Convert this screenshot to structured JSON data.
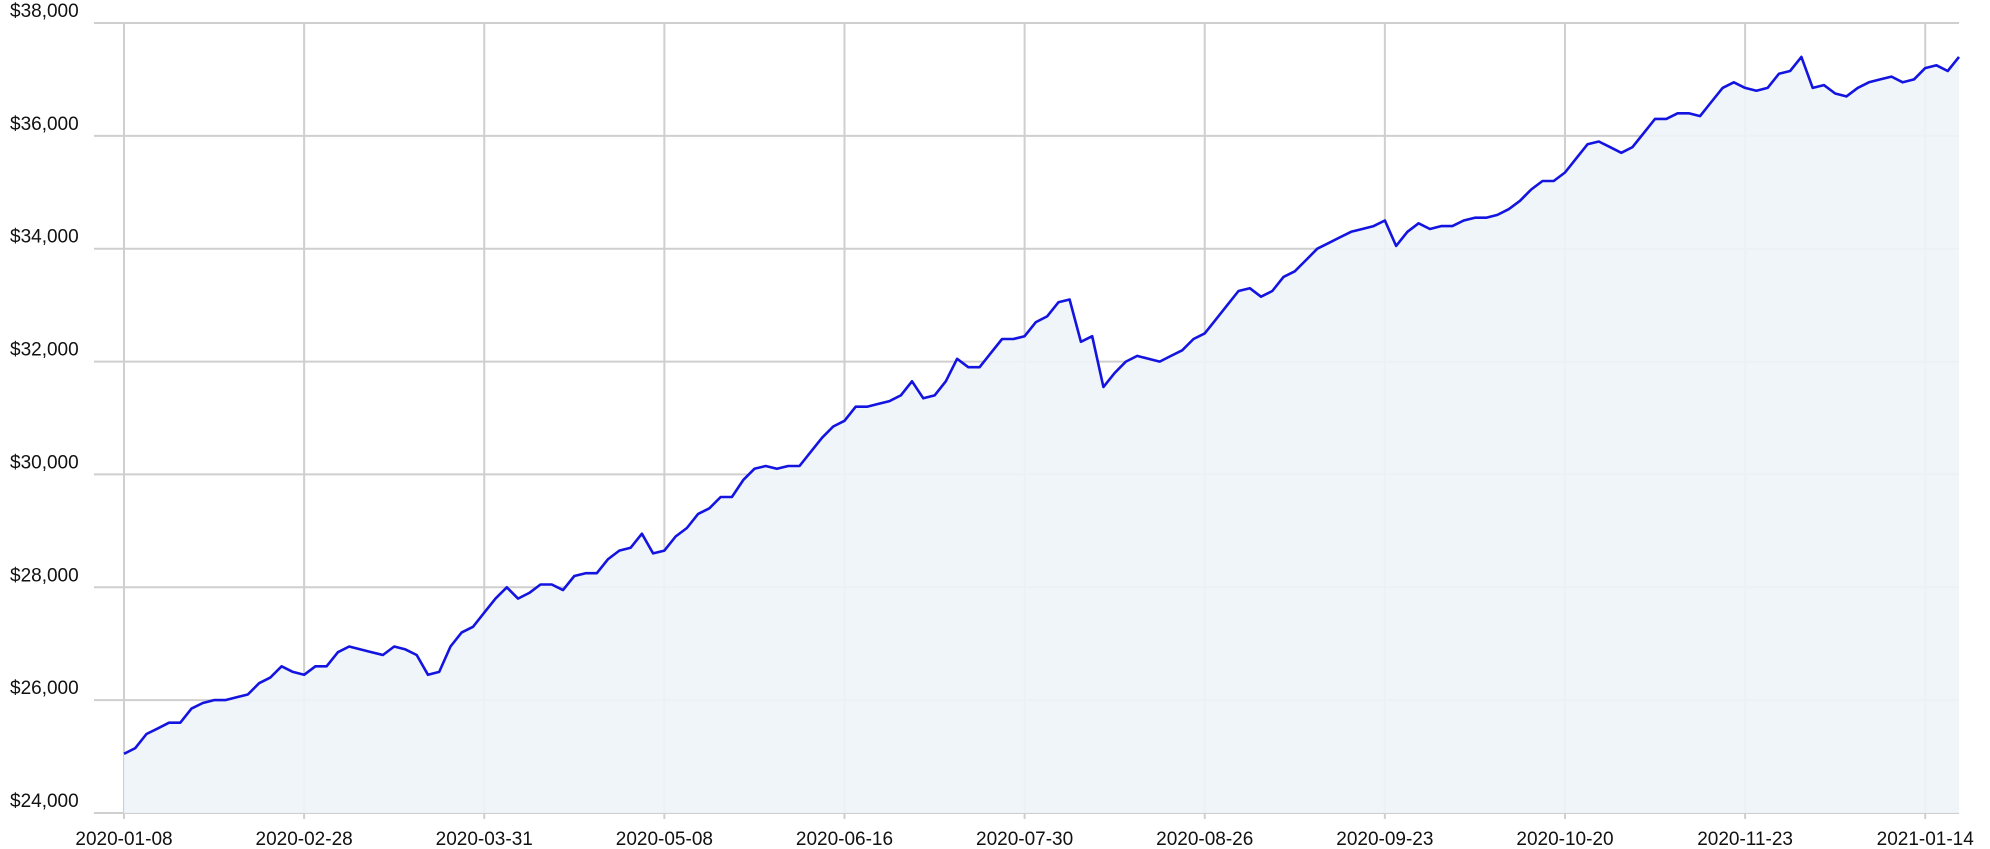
{
  "chart_data": {
    "type": "area",
    "categories": [
      "2020-01-08",
      null,
      null,
      null,
      null,
      null,
      null,
      null,
      null,
      null,
      null,
      null,
      null,
      null,
      null,
      null,
      "2020-02-28",
      null,
      null,
      null,
      null,
      null,
      null,
      null,
      null,
      null,
      null,
      null,
      null,
      null,
      null,
      null,
      "2020-03-31",
      null,
      null,
      null,
      null,
      null,
      null,
      null,
      null,
      null,
      null,
      null,
      null,
      null,
      null,
      null,
      "2020-05-08",
      null,
      null,
      null,
      null,
      null,
      null,
      null,
      null,
      null,
      null,
      null,
      null,
      null,
      null,
      null,
      "2020-06-16",
      null,
      null,
      null,
      null,
      null,
      null,
      null,
      null,
      null,
      null,
      null,
      null,
      null,
      null,
      null,
      "2020-07-30",
      null,
      null,
      null,
      null,
      null,
      null,
      null,
      null,
      null,
      null,
      null,
      null,
      null,
      null,
      null,
      "2020-08-26",
      null,
      null,
      null,
      null,
      null,
      null,
      null,
      null,
      null,
      null,
      null,
      null,
      null,
      null,
      null,
      "2020-09-23",
      null,
      null,
      null,
      null,
      null,
      null,
      null,
      null,
      null,
      null,
      null,
      null,
      null,
      null,
      null,
      "2020-10-20",
      null,
      null,
      null,
      null,
      null,
      null,
      null,
      null,
      null,
      null,
      null,
      null,
      null,
      null,
      null,
      "2020-11-23",
      null,
      null,
      null,
      null,
      null,
      null,
      null,
      null,
      null,
      null,
      null,
      null,
      null,
      null,
      null,
      "2021-01-14",
      null,
      null,
      null
    ],
    "values": [
      25050,
      25150,
      25400,
      25500,
      25600,
      25600,
      25850,
      25950,
      26000,
      26000,
      26050,
      26100,
      26300,
      26400,
      26600,
      26500,
      26450,
      26600,
      26600,
      26850,
      26950,
      26900,
      26850,
      26800,
      26950,
      26900,
      26800,
      26450,
      26500,
      26950,
      27200,
      27300,
      27550,
      27800,
      28000,
      27800,
      27900,
      28050,
      28050,
      27950,
      28200,
      28250,
      28250,
      28500,
      28650,
      28700,
      28950,
      28600,
      28650,
      28900,
      29050,
      29300,
      29400,
      29600,
      29600,
      29900,
      30100,
      30150,
      30100,
      30150,
      30150,
      30400,
      30650,
      30850,
      30950,
      31200,
      31200,
      31250,
      31300,
      31400,
      31650,
      31350,
      31400,
      31650,
      32050,
      31900,
      31900,
      32150,
      32400,
      32400,
      32450,
      32700,
      32800,
      33050,
      33100,
      32350,
      32450,
      31550,
      31800,
      32000,
      32100,
      32050,
      32000,
      32100,
      32200,
      32400,
      32500,
      32750,
      33000,
      33250,
      33300,
      33150,
      33250,
      33500,
      33600,
      33800,
      34000,
      34100,
      34200,
      34300,
      34350,
      34400,
      34500,
      34050,
      34300,
      34450,
      34350,
      34400,
      34400,
      34500,
      34550,
      34550,
      34600,
      34700,
      34850,
      35050,
      35200,
      35200,
      35350,
      35600,
      35850,
      35900,
      35800,
      35700,
      35800,
      36050,
      36300,
      36300,
      36400,
      36400,
      36350,
      36600,
      36850,
      36950,
      36850,
      36800,
      36850,
      37100,
      37150,
      37400,
      36850,
      36900,
      36750,
      36700,
      36850,
      36950,
      37000,
      37050,
      36950,
      37000,
      37200,
      37250,
      37150,
      37400
    ],
    "color": "#1414e0",
    "fill_color": "#eef4f8",
    "ylim": [
      24000,
      38000
    ],
    "yticks": [
      {
        "value": 24000,
        "label": "$24,000"
      },
      {
        "value": 26000,
        "label": "$26,000"
      },
      {
        "value": 28000,
        "label": "$28,000"
      },
      {
        "value": 30000,
        "label": "$30,000"
      },
      {
        "value": 32000,
        "label": "$32,000"
      },
      {
        "value": 34000,
        "label": "$34,000"
      },
      {
        "value": 36000,
        "label": "$36,000"
      },
      {
        "value": 38000,
        "label": "$38,000"
      }
    ],
    "grid": true
  }
}
